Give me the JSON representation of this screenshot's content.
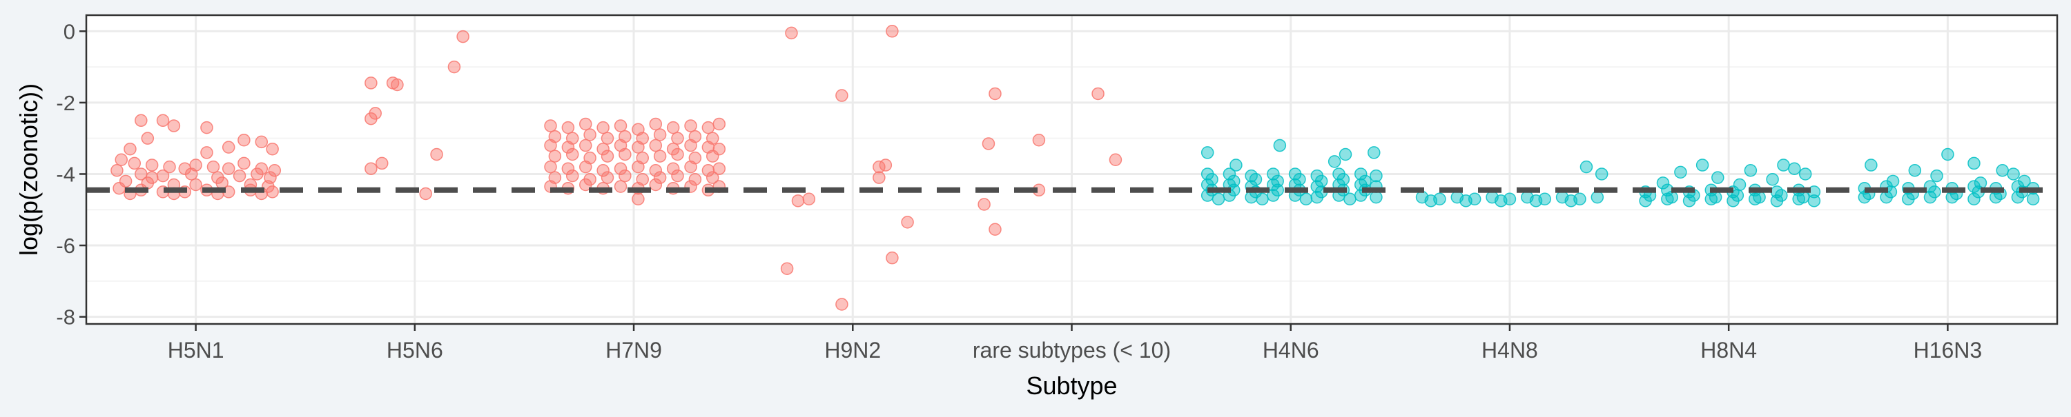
{
  "chart_data": {
    "type": "scatter",
    "xlabel": "Subtype",
    "ylabel": "log(p(zoonotic))",
    "categories": [
      "H5N1",
      "H5N6",
      "H7N9",
      "H9N2",
      "rare subtypes (< 10)",
      "H4N6",
      "H4N8",
      "H8N4",
      "H16N3"
    ],
    "yticks": [
      0,
      -2,
      -4,
      -6,
      -8
    ],
    "ylim": [
      -8.2,
      0.45
    ],
    "threshold": -4.45,
    "grid": true,
    "colors": {
      "zoonotic": "#f8766d",
      "non_zoonotic": "#00bfc4",
      "threshold_line": "#4d4d4d",
      "panel_border": "#333333",
      "grid": "#ebebeb",
      "background": "#f1f4f7"
    },
    "series": [
      {
        "category": "H5N1",
        "color": "#f8766d",
        "points": [
          [
            -0.25,
            -2.5
          ],
          [
            -0.15,
            -2.5
          ],
          [
            -0.1,
            -2.65
          ],
          [
            0.05,
            -2.7
          ],
          [
            0.22,
            -3.05
          ],
          [
            0.3,
            -3.1
          ],
          [
            -0.22,
            -3.0
          ],
          [
            0.15,
            -3.25
          ],
          [
            -0.3,
            -3.3
          ],
          [
            0.35,
            -3.3
          ],
          [
            -0.34,
            -3.6
          ],
          [
            -0.28,
            -3.7
          ],
          [
            -0.2,
            -3.75
          ],
          [
            -0.12,
            -3.8
          ],
          [
            -0.05,
            -3.85
          ],
          [
            0.0,
            -3.75
          ],
          [
            0.08,
            -3.8
          ],
          [
            0.15,
            -3.85
          ],
          [
            0.22,
            -3.7
          ],
          [
            0.3,
            -3.85
          ],
          [
            0.36,
            -3.9
          ],
          [
            -0.36,
            -3.9
          ],
          [
            -0.25,
            -4.0
          ],
          [
            -0.15,
            -4.05
          ],
          [
            -0.02,
            -4.0
          ],
          [
            0.1,
            -4.1
          ],
          [
            0.2,
            -4.05
          ],
          [
            0.28,
            -4.0
          ],
          [
            0.34,
            -4.1
          ],
          [
            -0.32,
            -4.2
          ],
          [
            -0.22,
            -4.25
          ],
          [
            -0.1,
            -4.3
          ],
          [
            0.0,
            -4.3
          ],
          [
            0.12,
            -4.25
          ],
          [
            0.25,
            -4.3
          ],
          [
            0.33,
            -4.35
          ],
          [
            -0.35,
            -4.4
          ],
          [
            -0.25,
            -4.45
          ],
          [
            -0.15,
            -4.5
          ],
          [
            -0.05,
            -4.5
          ],
          [
            0.05,
            -4.45
          ],
          [
            0.15,
            -4.5
          ],
          [
            0.25,
            -4.45
          ],
          [
            0.35,
            -4.5
          ],
          [
            -0.3,
            -4.55
          ],
          [
            -0.1,
            -4.55
          ],
          [
            0.1,
            -4.55
          ],
          [
            0.3,
            -4.55
          ],
          [
            -0.2,
            -4.1
          ],
          [
            0.05,
            -3.4
          ]
        ]
      },
      {
        "category": "H5N6",
        "color": "#f8766d",
        "points": [
          [
            -0.2,
            -1.45
          ],
          [
            -0.1,
            -1.45
          ],
          [
            -0.08,
            -1.5
          ],
          [
            0.18,
            -1.0
          ],
          [
            0.22,
            -0.15
          ],
          [
            -0.18,
            -2.3
          ],
          [
            -0.2,
            -2.45
          ],
          [
            -0.15,
            -3.7
          ],
          [
            -0.2,
            -3.85
          ],
          [
            0.1,
            -3.45
          ],
          [
            0.05,
            -4.55
          ]
        ]
      },
      {
        "category": "H7N9",
        "color": "#f8766d",
        "points": [
          [
            -0.38,
            -2.65
          ],
          [
            -0.3,
            -2.7
          ],
          [
            -0.22,
            -2.6
          ],
          [
            -0.14,
            -2.7
          ],
          [
            -0.06,
            -2.65
          ],
          [
            0.02,
            -2.75
          ],
          [
            0.1,
            -2.6
          ],
          [
            0.18,
            -2.7
          ],
          [
            0.26,
            -2.65
          ],
          [
            0.34,
            -2.7
          ],
          [
            0.39,
            -2.6
          ],
          [
            -0.36,
            -2.95
          ],
          [
            -0.28,
            -3.0
          ],
          [
            -0.2,
            -2.9
          ],
          [
            -0.12,
            -3.0
          ],
          [
            -0.04,
            -2.95
          ],
          [
            0.04,
            -3.0
          ],
          [
            0.12,
            -2.9
          ],
          [
            0.2,
            -3.0
          ],
          [
            0.28,
            -2.95
          ],
          [
            0.36,
            -3.0
          ],
          [
            -0.38,
            -3.2
          ],
          [
            -0.3,
            -3.25
          ],
          [
            -0.22,
            -3.2
          ],
          [
            -0.14,
            -3.3
          ],
          [
            -0.06,
            -3.2
          ],
          [
            0.02,
            -3.25
          ],
          [
            0.1,
            -3.2
          ],
          [
            0.18,
            -3.3
          ],
          [
            0.26,
            -3.2
          ],
          [
            0.34,
            -3.25
          ],
          [
            0.39,
            -3.3
          ],
          [
            -0.36,
            -3.5
          ],
          [
            -0.28,
            -3.45
          ],
          [
            -0.2,
            -3.55
          ],
          [
            -0.12,
            -3.5
          ],
          [
            -0.04,
            -3.45
          ],
          [
            0.04,
            -3.55
          ],
          [
            0.12,
            -3.5
          ],
          [
            0.2,
            -3.45
          ],
          [
            0.28,
            -3.55
          ],
          [
            0.36,
            -3.5
          ],
          [
            -0.38,
            -3.8
          ],
          [
            -0.3,
            -3.85
          ],
          [
            -0.22,
            -3.8
          ],
          [
            -0.14,
            -3.9
          ],
          [
            -0.06,
            -3.85
          ],
          [
            0.02,
            -3.8
          ],
          [
            0.1,
            -3.9
          ],
          [
            0.18,
            -3.85
          ],
          [
            0.26,
            -3.8
          ],
          [
            0.34,
            -3.9
          ],
          [
            0.39,
            -3.85
          ],
          [
            -0.36,
            -4.1
          ],
          [
            -0.28,
            -4.05
          ],
          [
            -0.2,
            -4.15
          ],
          [
            -0.12,
            -4.1
          ],
          [
            -0.04,
            -4.05
          ],
          [
            0.04,
            -4.15
          ],
          [
            0.12,
            -4.1
          ],
          [
            0.2,
            -4.05
          ],
          [
            0.28,
            -4.15
          ],
          [
            0.36,
            -4.1
          ],
          [
            -0.38,
            -4.35
          ],
          [
            -0.3,
            -4.4
          ],
          [
            -0.22,
            -4.3
          ],
          [
            -0.14,
            -4.4
          ],
          [
            -0.06,
            -4.35
          ],
          [
            0.02,
            -4.4
          ],
          [
            0.1,
            -4.3
          ],
          [
            0.18,
            -4.4
          ],
          [
            0.26,
            -4.35
          ],
          [
            0.34,
            -4.45
          ],
          [
            0.39,
            -4.35
          ],
          [
            0.02,
            -4.7
          ]
        ]
      },
      {
        "category": "H9N2",
        "color": "#f8766d",
        "points": [
          [
            -0.28,
            -0.05
          ],
          [
            0.18,
            0.0
          ],
          [
            -0.05,
            -1.8
          ],
          [
            0.12,
            -3.8
          ],
          [
            0.15,
            -3.75
          ],
          [
            0.12,
            -4.1
          ],
          [
            -0.2,
            -4.7
          ],
          [
            -0.25,
            -4.75
          ],
          [
            0.25,
            -5.35
          ],
          [
            0.18,
            -6.35
          ],
          [
            -0.3,
            -6.65
          ],
          [
            -0.05,
            -7.65
          ]
        ]
      },
      {
        "category": "rare subtypes (< 10)",
        "color": "#f8766d",
        "points": [
          [
            -0.35,
            -1.75
          ],
          [
            0.12,
            -1.75
          ],
          [
            -0.38,
            -3.15
          ],
          [
            -0.15,
            -3.05
          ],
          [
            0.2,
            -3.6
          ],
          [
            -0.15,
            -4.45
          ],
          [
            -0.4,
            -4.85
          ],
          [
            -0.35,
            -5.55
          ]
        ]
      },
      {
        "category": "H4N6",
        "color": "#00bfc4",
        "points": [
          [
            -0.38,
            -3.4
          ],
          [
            -0.05,
            -3.2
          ],
          [
            0.25,
            -3.45
          ],
          [
            0.38,
            -3.4
          ],
          [
            0.2,
            -3.65
          ],
          [
            -0.25,
            -3.75
          ],
          [
            -0.38,
            -4.0
          ],
          [
            -0.28,
            -4.0
          ],
          [
            -0.18,
            -4.05
          ],
          [
            -0.08,
            -4.0
          ],
          [
            0.02,
            -4.0
          ],
          [
            0.12,
            -4.05
          ],
          [
            0.22,
            -4.0
          ],
          [
            0.32,
            -4.0
          ],
          [
            0.39,
            -4.05
          ],
          [
            -0.36,
            -4.15
          ],
          [
            -0.26,
            -4.2
          ],
          [
            -0.16,
            -4.15
          ],
          [
            -0.06,
            -4.2
          ],
          [
            0.04,
            -4.15
          ],
          [
            0.14,
            -4.2
          ],
          [
            0.24,
            -4.15
          ],
          [
            0.34,
            -4.2
          ],
          [
            -0.38,
            -4.3
          ],
          [
            -0.28,
            -4.3
          ],
          [
            -0.18,
            -4.35
          ],
          [
            -0.08,
            -4.3
          ],
          [
            0.02,
            -4.3
          ],
          [
            0.12,
            -4.35
          ],
          [
            0.22,
            -4.3
          ],
          [
            0.32,
            -4.3
          ],
          [
            0.39,
            -4.35
          ],
          [
            -0.36,
            -4.45
          ],
          [
            -0.26,
            -4.45
          ],
          [
            -0.16,
            -4.5
          ],
          [
            -0.06,
            -4.45
          ],
          [
            0.04,
            -4.45
          ],
          [
            0.14,
            -4.5
          ],
          [
            0.24,
            -4.45
          ],
          [
            0.34,
            -4.45
          ],
          [
            -0.38,
            -4.6
          ],
          [
            -0.28,
            -4.6
          ],
          [
            -0.18,
            -4.65
          ],
          [
            -0.08,
            -4.6
          ],
          [
            0.02,
            -4.6
          ],
          [
            0.12,
            -4.65
          ],
          [
            0.22,
            -4.6
          ],
          [
            0.32,
            -4.6
          ],
          [
            0.39,
            -4.65
          ],
          [
            -0.33,
            -4.7
          ],
          [
            -0.13,
            -4.7
          ],
          [
            0.07,
            -4.7
          ],
          [
            0.27,
            -4.7
          ]
        ]
      },
      {
        "category": "H4N8",
        "color": "#00bfc4",
        "points": [
          [
            0.35,
            -3.8
          ],
          [
            0.42,
            -4.0
          ],
          [
            -0.4,
            -4.65
          ],
          [
            -0.32,
            -4.7
          ],
          [
            -0.24,
            -4.65
          ],
          [
            -0.16,
            -4.7
          ],
          [
            -0.08,
            -4.65
          ],
          [
            0.0,
            -4.7
          ],
          [
            0.08,
            -4.65
          ],
          [
            0.16,
            -4.7
          ],
          [
            0.24,
            -4.65
          ],
          [
            0.32,
            -4.7
          ],
          [
            0.4,
            -4.65
          ],
          [
            -0.36,
            -4.75
          ],
          [
            -0.2,
            -4.75
          ],
          [
            -0.04,
            -4.75
          ],
          [
            0.12,
            -4.75
          ],
          [
            0.28,
            -4.75
          ]
        ]
      },
      {
        "category": "H8N4",
        "color": "#00bfc4",
        "points": [
          [
            -0.12,
            -3.75
          ],
          [
            0.25,
            -3.75
          ],
          [
            0.3,
            -3.85
          ],
          [
            -0.22,
            -3.95
          ],
          [
            0.1,
            -3.9
          ],
          [
            0.35,
            -4.0
          ],
          [
            -0.05,
            -4.1
          ],
          [
            0.2,
            -4.15
          ],
          [
            -0.3,
            -4.25
          ],
          [
            0.05,
            -4.3
          ],
          [
            -0.38,
            -4.5
          ],
          [
            -0.28,
            -4.45
          ],
          [
            -0.18,
            -4.5
          ],
          [
            -0.08,
            -4.45
          ],
          [
            0.02,
            -4.5
          ],
          [
            0.12,
            -4.45
          ],
          [
            0.22,
            -4.5
          ],
          [
            0.32,
            -4.45
          ],
          [
            0.39,
            -4.5
          ],
          [
            -0.36,
            -4.6
          ],
          [
            -0.26,
            -4.65
          ],
          [
            -0.16,
            -4.6
          ],
          [
            -0.06,
            -4.65
          ],
          [
            0.04,
            -4.6
          ],
          [
            0.14,
            -4.65
          ],
          [
            0.24,
            -4.6
          ],
          [
            0.34,
            -4.65
          ],
          [
            -0.38,
            -4.75
          ],
          [
            -0.28,
            -4.7
          ],
          [
            -0.18,
            -4.75
          ],
          [
            -0.08,
            -4.7
          ],
          [
            0.02,
            -4.75
          ],
          [
            0.12,
            -4.7
          ],
          [
            0.22,
            -4.75
          ],
          [
            0.32,
            -4.7
          ],
          [
            0.39,
            -4.75
          ]
        ]
      },
      {
        "category": "H16N3",
        "color": "#00bfc4",
        "points": [
          [
            0.0,
            -3.45
          ],
          [
            -0.35,
            -3.75
          ],
          [
            0.12,
            -3.7
          ],
          [
            0.25,
            -3.9
          ],
          [
            -0.15,
            -3.9
          ],
          [
            -0.05,
            -4.05
          ],
          [
            0.3,
            -4.0
          ],
          [
            0.35,
            -4.2
          ],
          [
            -0.25,
            -4.2
          ],
          [
            0.15,
            -4.25
          ],
          [
            -0.38,
            -4.4
          ],
          [
            -0.28,
            -4.35
          ],
          [
            -0.18,
            -4.4
          ],
          [
            -0.08,
            -4.35
          ],
          [
            0.02,
            -4.4
          ],
          [
            0.12,
            -4.35
          ],
          [
            0.22,
            -4.4
          ],
          [
            0.32,
            -4.35
          ],
          [
            0.39,
            -4.4
          ],
          [
            -0.36,
            -4.55
          ],
          [
            -0.26,
            -4.5
          ],
          [
            -0.16,
            -4.55
          ],
          [
            -0.06,
            -4.5
          ],
          [
            0.04,
            -4.55
          ],
          [
            0.14,
            -4.5
          ],
          [
            0.24,
            -4.55
          ],
          [
            0.34,
            -4.5
          ],
          [
            -0.38,
            -4.65
          ],
          [
            -0.28,
            -4.65
          ],
          [
            -0.18,
            -4.7
          ],
          [
            -0.08,
            -4.65
          ],
          [
            0.02,
            -4.65
          ],
          [
            0.12,
            -4.7
          ],
          [
            0.22,
            -4.65
          ],
          [
            0.32,
            -4.65
          ],
          [
            0.39,
            -4.7
          ]
        ]
      }
    ]
  }
}
